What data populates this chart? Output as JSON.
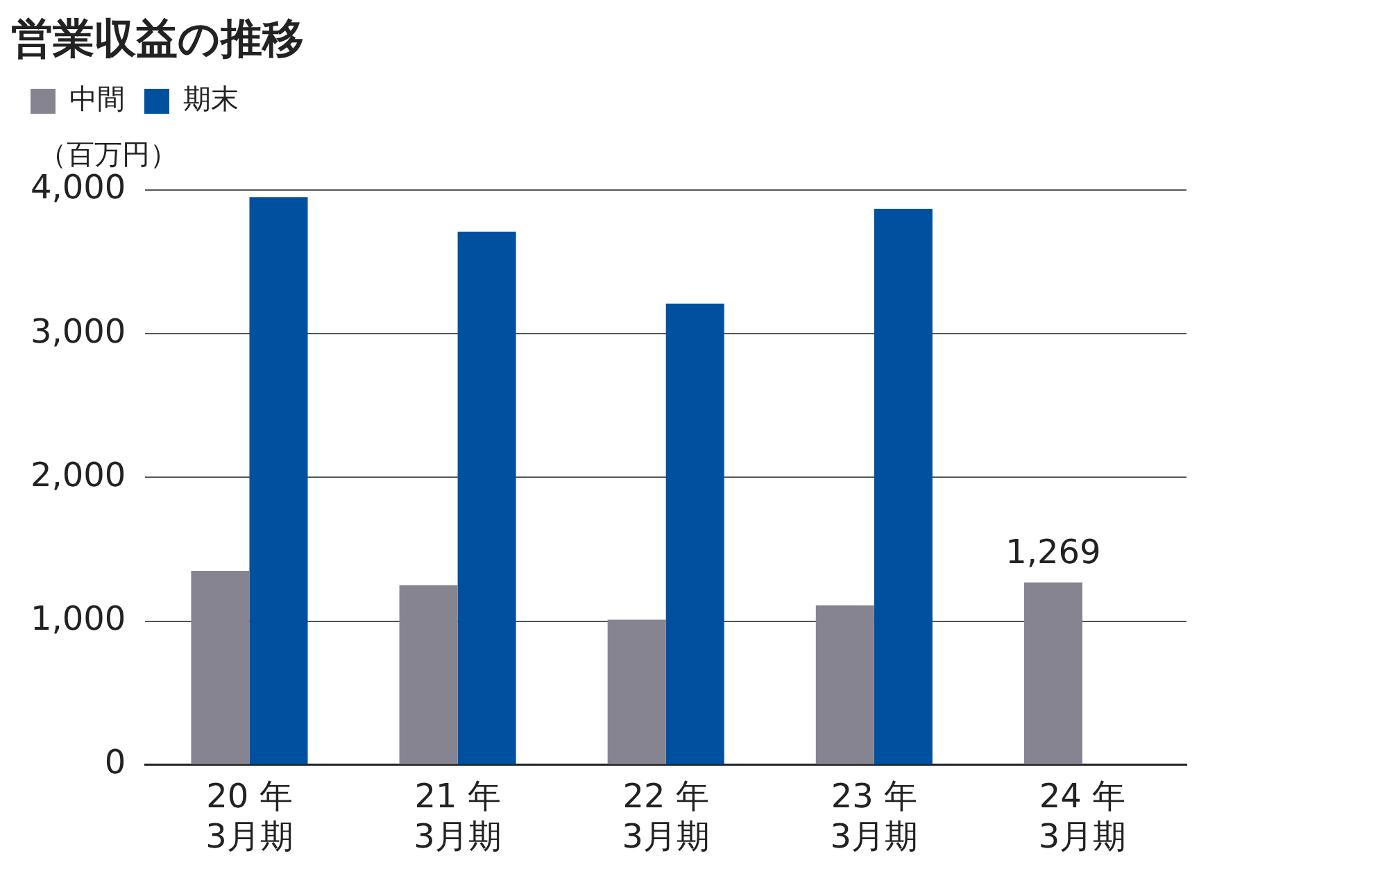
{
  "chart_data": {
    "type": "bar",
    "title": "営業収益の推移",
    "ylabel": "（百万円）",
    "categories": [
      "20 年\n3月期",
      "21 年\n3月期",
      "22 年\n3月期",
      "23 年\n3月期",
      "24 年\n3月期"
    ],
    "series": [
      {
        "name": "中間",
        "color": "#868490",
        "values": [
          1350,
          1250,
          1010,
          1110,
          1269
        ],
        "value_labels": [
          null,
          null,
          null,
          null,
          "1,269"
        ]
      },
      {
        "name": "期末",
        "color": "#0050a0",
        "values": [
          3950,
          3710,
          3210,
          3870,
          null
        ]
      }
    ],
    "ylim": [
      0,
      4000
    ],
    "yticks": [
      {
        "value": 0,
        "label": "0"
      },
      {
        "value": 1000,
        "label": "1,000"
      },
      {
        "value": 2000,
        "label": "2,000"
      },
      {
        "value": 3000,
        "label": "3,000"
      },
      {
        "value": 4000,
        "label": "4,000"
      }
    ],
    "grid": "y",
    "legend": "top left"
  }
}
